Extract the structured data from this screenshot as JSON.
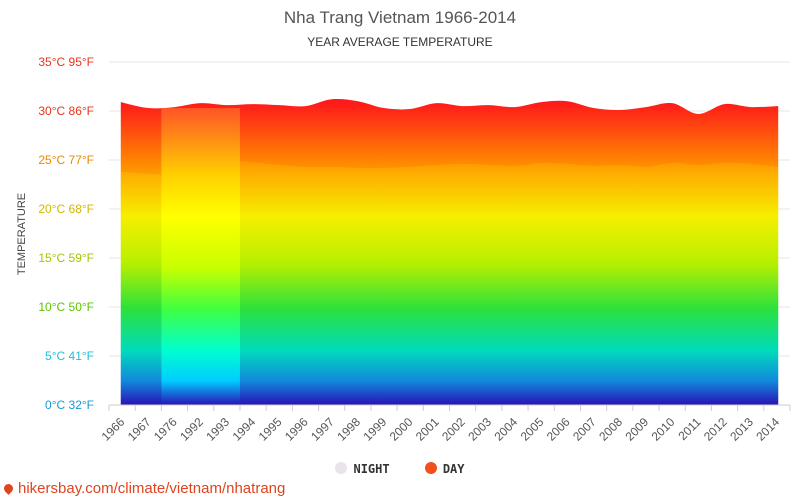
{
  "title": "Nha Trang Vietnam 1966-2014",
  "subtitle": "YEAR AVERAGE TEMPERATURE",
  "source": "hikersbay.com/climate/vietnam/nhatrang",
  "legend": [
    {
      "label": "NIGHT",
      "color": "#e8e4ea"
    },
    {
      "label": "DAY",
      "color": "#f0501e"
    }
  ],
  "chart_data": {
    "type": "area",
    "title": "Nha Trang Vietnam 1966-2014",
    "subtitle": "YEAR AVERAGE TEMPERATURE",
    "ylabel": "TEMPERATURE",
    "ylim": [
      0,
      35
    ],
    "ytick_values": [
      0,
      5,
      10,
      15,
      20,
      25,
      30,
      35
    ],
    "yticks": [
      "0°C 32°F",
      "5°C 41°F",
      "10°C 50°F",
      "15°C 59°F",
      "20°C 68°F",
      "25°C 77°F",
      "30°C 86°F",
      "35°C 95°F"
    ],
    "ytick_colors": [
      "#1a9ad6",
      "#1fc0d8",
      "#5bc500",
      "#a7c400",
      "#d3b700",
      "#e58a00",
      "#e8341c",
      "#e8341c"
    ],
    "categories": [
      "1966",
      "1967",
      "1976",
      "1992",
      "1993",
      "1994",
      "1995",
      "1996",
      "1997",
      "1998",
      "1999",
      "2000",
      "2001",
      "2002",
      "2003",
      "2004",
      "2005",
      "2006",
      "2007",
      "2008",
      "2009",
      "2010",
      "2011",
      "2012",
      "2013",
      "2014"
    ],
    "series": [
      {
        "name": "NIGHT",
        "values": [
          23.8,
          23.5,
          null,
          null,
          null,
          24.9,
          24.5,
          24.3,
          24.3,
          24.2,
          24.2,
          24.3,
          24.5,
          24.6,
          24.5,
          24.4,
          24.7,
          24.6,
          24.4,
          24.5,
          24.3,
          24.7,
          24.5,
          24.7,
          24.6,
          24.3
        ]
      },
      {
        "name": "DAY",
        "values": [
          30.9,
          30.3,
          30.4,
          30.8,
          30.6,
          30.7,
          30.6,
          30.5,
          31.2,
          31.0,
          30.3,
          30.2,
          30.8,
          30.5,
          30.6,
          30.4,
          30.9,
          31.0,
          30.3,
          30.1,
          30.4,
          30.8,
          29.7,
          30.7,
          30.4,
          30.5
        ]
      }
    ],
    "grid": true,
    "legend_position": "bottom"
  }
}
